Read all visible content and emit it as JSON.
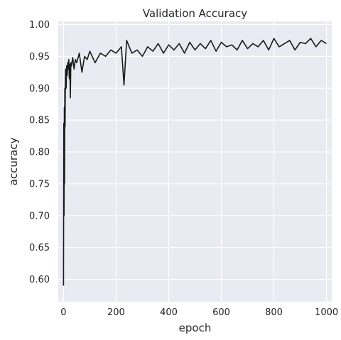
{
  "chart_data": {
    "type": "line",
    "title": "Validation Accuracy",
    "xlabel": "epoch",
    "ylabel": "accuracy",
    "xlim": [
      -20,
      1020
    ],
    "ylim": [
      0.565,
      1.005
    ],
    "xticks": [
      0,
      200,
      400,
      600,
      800,
      1000
    ],
    "yticks": [
      0.6,
      0.65,
      0.7,
      0.75,
      0.8,
      0.85,
      0.9,
      0.95,
      1.0
    ],
    "xtick_labels": [
      "0",
      "200",
      "400",
      "600",
      "800",
      "1000"
    ],
    "ytick_labels": [
      "0.60",
      "0.65",
      "0.70",
      "0.75",
      "0.80",
      "0.85",
      "0.90",
      "0.95",
      "1.00"
    ],
    "grid": true,
    "background": "#eaeaf2",
    "line_color": "#1a1a1a",
    "series": [
      {
        "x": [
          0,
          1,
          2,
          3,
          4,
          5,
          6,
          7,
          8,
          10,
          12,
          14,
          16,
          18,
          20,
          22,
          24,
          26,
          28,
          30,
          35,
          40,
          45,
          50,
          60,
          70,
          80,
          90,
          100,
          120,
          140,
          160,
          180,
          200,
          220,
          230,
          240,
          260,
          280,
          300,
          320,
          340,
          360,
          380,
          400,
          420,
          440,
          460,
          480,
          500,
          520,
          540,
          560,
          580,
          600,
          620,
          640,
          660,
          680,
          700,
          720,
          740,
          760,
          780,
          800,
          820,
          840,
          860,
          880,
          900,
          920,
          940,
          960,
          980,
          1000
        ],
        "y": [
          0.59,
          0.845,
          0.7,
          0.87,
          0.75,
          0.9,
          0.84,
          0.91,
          0.93,
          0.9,
          0.935,
          0.92,
          0.94,
          0.93,
          0.945,
          0.915,
          0.938,
          0.885,
          0.94,
          0.935,
          0.948,
          0.93,
          0.945,
          0.94,
          0.955,
          0.925,
          0.95,
          0.945,
          0.958,
          0.94,
          0.955,
          0.95,
          0.96,
          0.955,
          0.965,
          0.905,
          0.975,
          0.955,
          0.96,
          0.95,
          0.965,
          0.958,
          0.97,
          0.955,
          0.968,
          0.96,
          0.97,
          0.955,
          0.972,
          0.96,
          0.97,
          0.962,
          0.975,
          0.958,
          0.972,
          0.965,
          0.968,
          0.96,
          0.975,
          0.962,
          0.97,
          0.965,
          0.975,
          0.96,
          0.978,
          0.965,
          0.97,
          0.975,
          0.96,
          0.972,
          0.97,
          0.978,
          0.965,
          0.975,
          0.97
        ]
      }
    ]
  }
}
